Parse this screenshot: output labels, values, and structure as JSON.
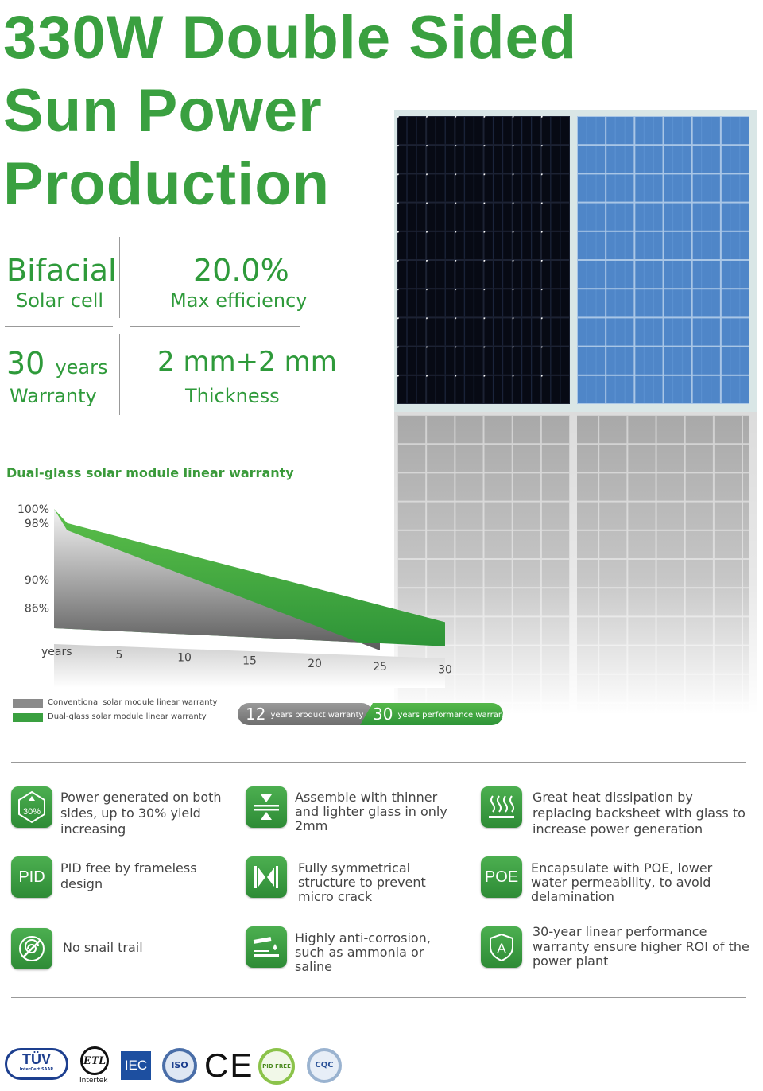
{
  "title": {
    "line1": "330W Double Sided",
    "line2": "Sun Power",
    "line3": "Production"
  },
  "specs": {
    "bifacial": {
      "big": "Bifacial",
      "small": "Solar cell"
    },
    "efficiency": {
      "big": "20.0%",
      "small": "Max efficiency"
    },
    "warranty": {
      "num": "30",
      "unit": "years",
      "small": "Warranty"
    },
    "thickness": {
      "big": "2 mm+2 mm",
      "small": "Thickness"
    }
  },
  "chart_data": {
    "type": "area",
    "title": "Dual-glass solar module linear warranty",
    "xlabel": "years",
    "x_ticks": [
      "5",
      "10",
      "15",
      "20",
      "25",
      "30"
    ],
    "y_ticks": [
      "100%",
      "98%",
      "90%",
      "86%"
    ],
    "series": [
      {
        "name": "Conventional solar module linear warranty",
        "color": "#9a9a9a",
        "x": [
          0,
          1,
          25
        ],
        "values": [
          100,
          97,
          80
        ]
      },
      {
        "name": "Dual-glass solar module linear warranty",
        "color": "#3aa040",
        "x": [
          0,
          1,
          30
        ],
        "values": [
          100,
          98,
          84
        ]
      }
    ],
    "legend": [
      "Conventional solar module linear warranty",
      "Dual-glass solar module linear warranty"
    ],
    "pills": {
      "product": {
        "num": "12",
        "text": "years product warranty"
      },
      "performance": {
        "num": "30",
        "text": "years performance warranty"
      }
    }
  },
  "features": [
    {
      "icon": "30%",
      "text": "Power generated on both sides, up to 30% yield increasing"
    },
    {
      "icon": "",
      "text": "Assemble with thinner and lighter glass in only 2mm"
    },
    {
      "icon": "",
      "text": "Great heat dissipation by replacing backsheet with glass to increase power generation"
    },
    {
      "icon": "PID",
      "text": "PID free by frameless design"
    },
    {
      "icon": "",
      "text": "Fully symmetrical structure to prevent micro crack"
    },
    {
      "icon": "POE",
      "text": "Encapsulate with POE, lower water permeability, to avoid delamination"
    },
    {
      "icon": "",
      "text": "No snail trail"
    },
    {
      "icon": "",
      "text": "Highly anti-corrosion, such as ammonia or saline"
    },
    {
      "icon": "",
      "text": "30-year linear performance warranty ensure higher ROI of the power plant"
    }
  ],
  "certs": {
    "tuv": "TÜV",
    "tuv_sub": "InterCert SAAR",
    "etl": "ETL",
    "etl_sub": "Intertek",
    "iec": "IEC",
    "iso": "ISO",
    "ce": "CE",
    "pid": "PID FREE",
    "cqc": "CQC"
  },
  "colors": {
    "green": "#3aa040",
    "panel_dark": "#0b0f1c",
    "panel_blue": "#4f86c8"
  }
}
